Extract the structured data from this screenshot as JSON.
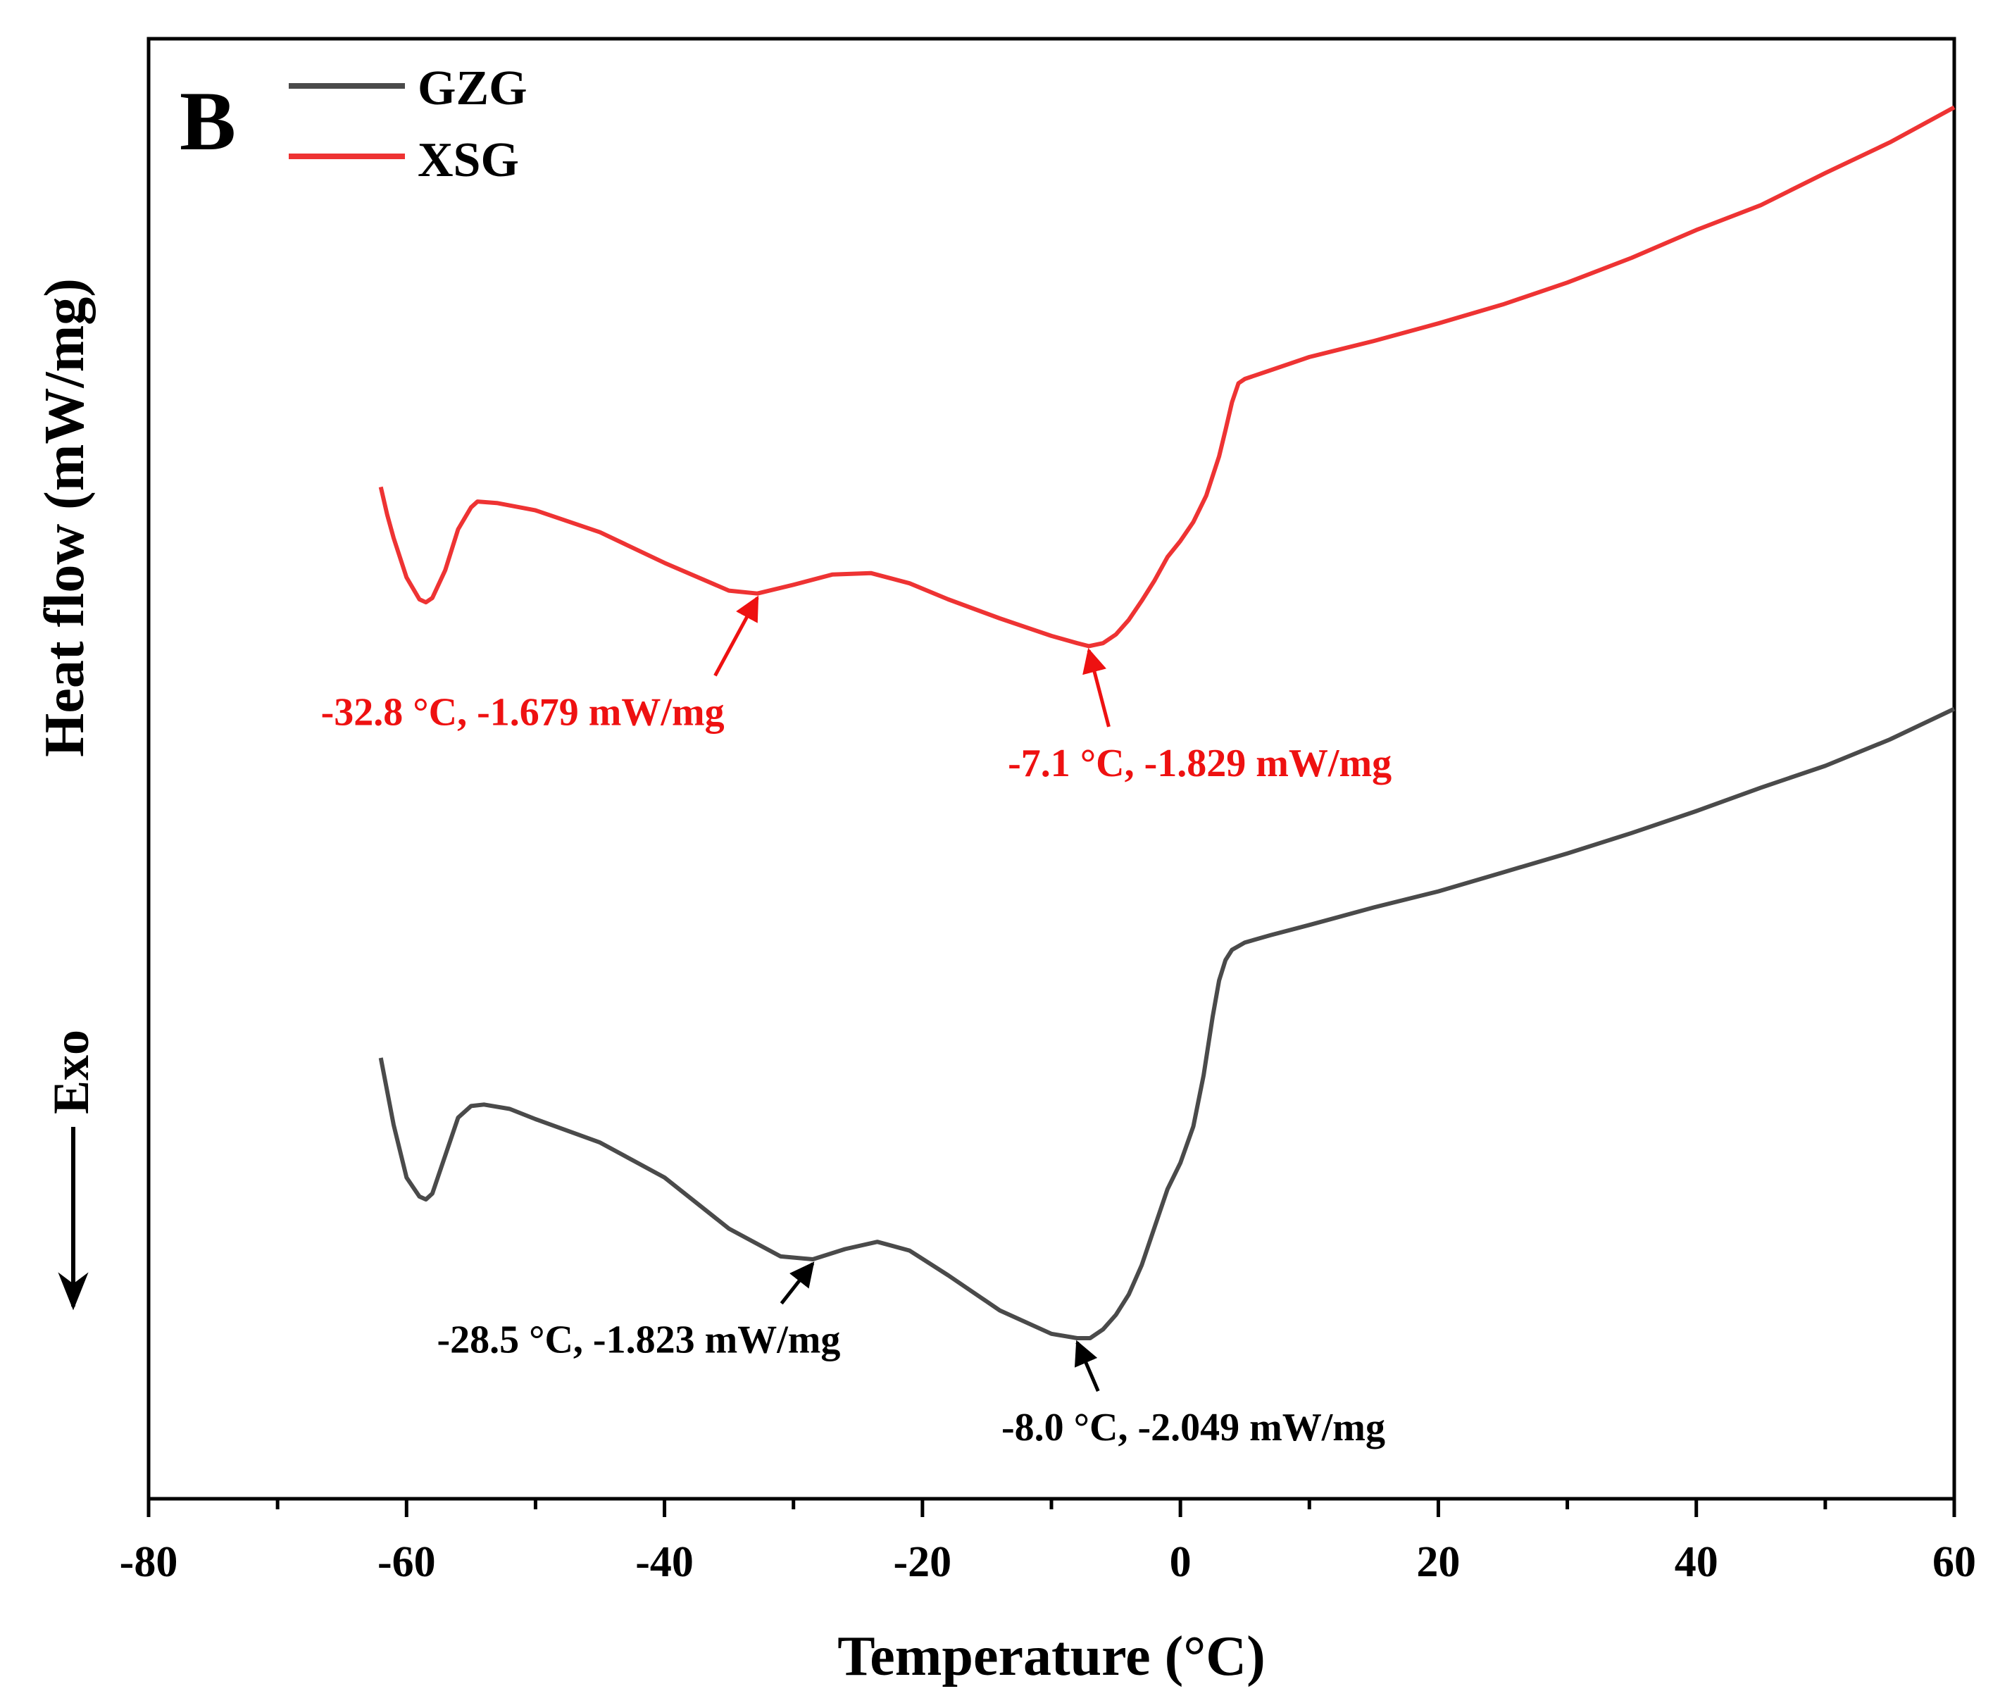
{
  "chart_data": {
    "type": "line",
    "panel_label": "B",
    "title": "",
    "xlabel": "Temperature (°C)",
    "ylabel": "Heat flow (mW/mg)",
    "exo_label": "Exo",
    "xlim": [
      -80,
      60
    ],
    "ylim": [
      0,
      100
    ],
    "y_scale_note": "relative vertical position (no y tick values shown)",
    "x_ticks": [
      -80,
      -60,
      -40,
      -20,
      0,
      20,
      40,
      60
    ],
    "x_tick_labels": [
      "-80",
      "-60",
      "-40",
      "-20",
      "0",
      "20",
      "40",
      "60"
    ],
    "x_minor_ticks": [
      -70,
      -50,
      -30,
      -10,
      10,
      30,
      50
    ],
    "grid": false,
    "legend_position": "top-left",
    "colors": {
      "GZG": "#4a4a4a",
      "XSG": "#ee3333",
      "axis": "#000000",
      "annotation_dark": "#000000",
      "annotation_red": "#ee1111"
    },
    "series": [
      {
        "name": "GZG",
        "color": "#4a4a4a",
        "x": [
          -62,
          -61,
          -60,
          -59,
          -58.5,
          -58,
          -57,
          -56,
          -55,
          -54,
          -52,
          -50,
          -45,
          -40,
          -35,
          -31,
          -28.5,
          -26,
          -23.5,
          -21,
          -18,
          -14,
          -10,
          -8,
          -7,
          -6,
          -5,
          -4,
          -3,
          -2,
          -1,
          0,
          1,
          1.8,
          2.5,
          3,
          3.5,
          4,
          5,
          7,
          10,
          15,
          20,
          25,
          30,
          35,
          40,
          45,
          50,
          55,
          60
        ],
        "y": [
          30.2,
          25.6,
          22.0,
          20.7,
          20.5,
          20.9,
          23.5,
          26.1,
          26.9,
          27.0,
          26.7,
          26.0,
          24.4,
          22.0,
          18.5,
          16.6,
          16.4,
          17.1,
          17.6,
          17.0,
          15.3,
          12.9,
          11.3,
          11.0,
          11.0,
          11.6,
          12.6,
          14.0,
          16.0,
          18.6,
          21.2,
          23.0,
          25.5,
          29.0,
          33.0,
          35.5,
          36.9,
          37.6,
          38.1,
          38.6,
          39.3,
          40.5,
          41.6,
          42.9,
          44.2,
          45.6,
          47.1,
          48.7,
          50.2,
          52.0,
          54.1
        ]
      },
      {
        "name": "XSG",
        "color": "#ee3333",
        "x": [
          -62,
          -61.5,
          -61,
          -60,
          -59,
          -58.5,
          -58,
          -57,
          -56,
          -55,
          -54.5,
          -53,
          -50,
          -45,
          -40,
          -35,
          -32.8,
          -30,
          -27,
          -24,
          -21,
          -18,
          -14,
          -10,
          -8,
          -7.1,
          -6,
          -5,
          -4,
          -3,
          -2,
          -1,
          0,
          1,
          2,
          3,
          3.5,
          4,
          4.5,
          5,
          7,
          10,
          15,
          20,
          25,
          30,
          35,
          40,
          45,
          50,
          55,
          60
        ],
        "y": [
          69.3,
          67.4,
          65.8,
          63.1,
          61.6,
          61.4,
          61.7,
          63.6,
          66.4,
          67.9,
          68.3,
          68.2,
          67.7,
          66.2,
          64.1,
          62.2,
          62.0,
          62.6,
          63.3,
          63.4,
          62.7,
          61.6,
          60.3,
          59.1,
          58.6,
          58.4,
          58.6,
          59.2,
          60.2,
          61.5,
          62.9,
          64.5,
          65.6,
          66.9,
          68.7,
          71.4,
          73.2,
          75.1,
          76.4,
          76.7,
          77.3,
          78.2,
          79.3,
          80.5,
          81.8,
          83.3,
          85.0,
          86.9,
          88.6,
          90.8,
          92.9,
          95.3
        ]
      }
    ],
    "annotations": [
      {
        "series": "XSG",
        "label": "-32.8 °C, -1.679 mW/mg",
        "x": -32.8,
        "y": 62.0,
        "text_x": -51,
        "text_y": 53.0,
        "color": "#ee1111"
      },
      {
        "series": "XSG",
        "label": "-7.1 °C, -1.829 mW/mg",
        "x": -7.1,
        "y": 58.4,
        "text_x": 1.5,
        "text_y": 49.5,
        "color": "#ee1111"
      },
      {
        "series": "GZG",
        "label": "-28.5 °C, -1.823 mW/mg",
        "x": -28.5,
        "y": 16.4,
        "text_x": -42,
        "text_y": 10.0,
        "color": "#000000"
      },
      {
        "series": "GZG",
        "label": "-8.0 °C, -2.049 mW/mg",
        "x": -8.0,
        "y": 11.0,
        "text_x": 1.0,
        "text_y": 4.0,
        "color": "#000000"
      }
    ]
  }
}
